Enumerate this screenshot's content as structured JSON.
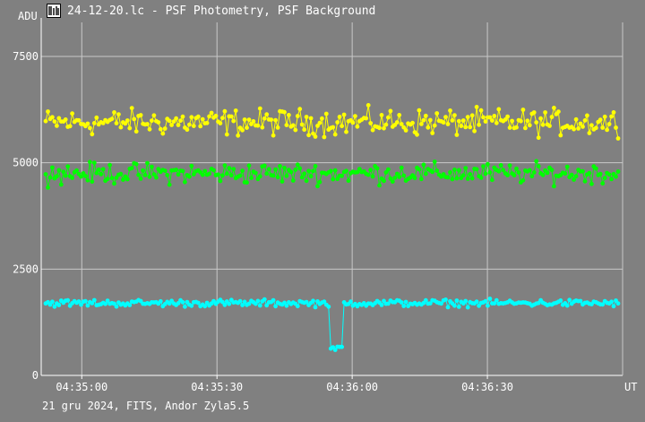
{
  "window": {
    "title": "24-12-20.lc - PSF Photometry, PSF Background",
    "footer": "21 gru 2024, FITS, Andor Zyla5.5"
  },
  "colors": {
    "background": "#808080",
    "grid": "#c8c8c8",
    "axis": "#ffffff",
    "series_photometry": "#ffff00",
    "series_green": "#00ff00",
    "series_background": "#00ffff"
  },
  "chart_data": {
    "type": "scatter",
    "ylabel": "ADU",
    "xlabel": "UT",
    "y_ticks": [
      0,
      2500,
      5000,
      7500
    ],
    "y_tick_labels": [
      "0",
      "2500",
      "5000",
      "7500"
    ],
    "ylim": [
      0,
      8300
    ],
    "x_ticks": [
      "04:35:00",
      "04:35:30",
      "04:36:00",
      "04:36:30"
    ],
    "x_tick_labels": [
      "04:35:00",
      "04:35:30",
      "04:36:00",
      "04:36:30"
    ],
    "xlim": [
      "04:34:51",
      "04:37:00"
    ],
    "grid": true,
    "series": [
      {
        "color": "#ffff00",
        "mean": 5950,
        "spread": 450,
        "points": 260
      },
      {
        "color": "#00ff00",
        "mean": 4750,
        "spread": 350,
        "points": 260
      },
      {
        "color": "#00ffff",
        "mean": 1700,
        "spread": 120,
        "points": 260,
        "dip": {
          "from": "04:35:55",
          "to": "04:35:58",
          "value": 650
        }
      }
    ]
  }
}
